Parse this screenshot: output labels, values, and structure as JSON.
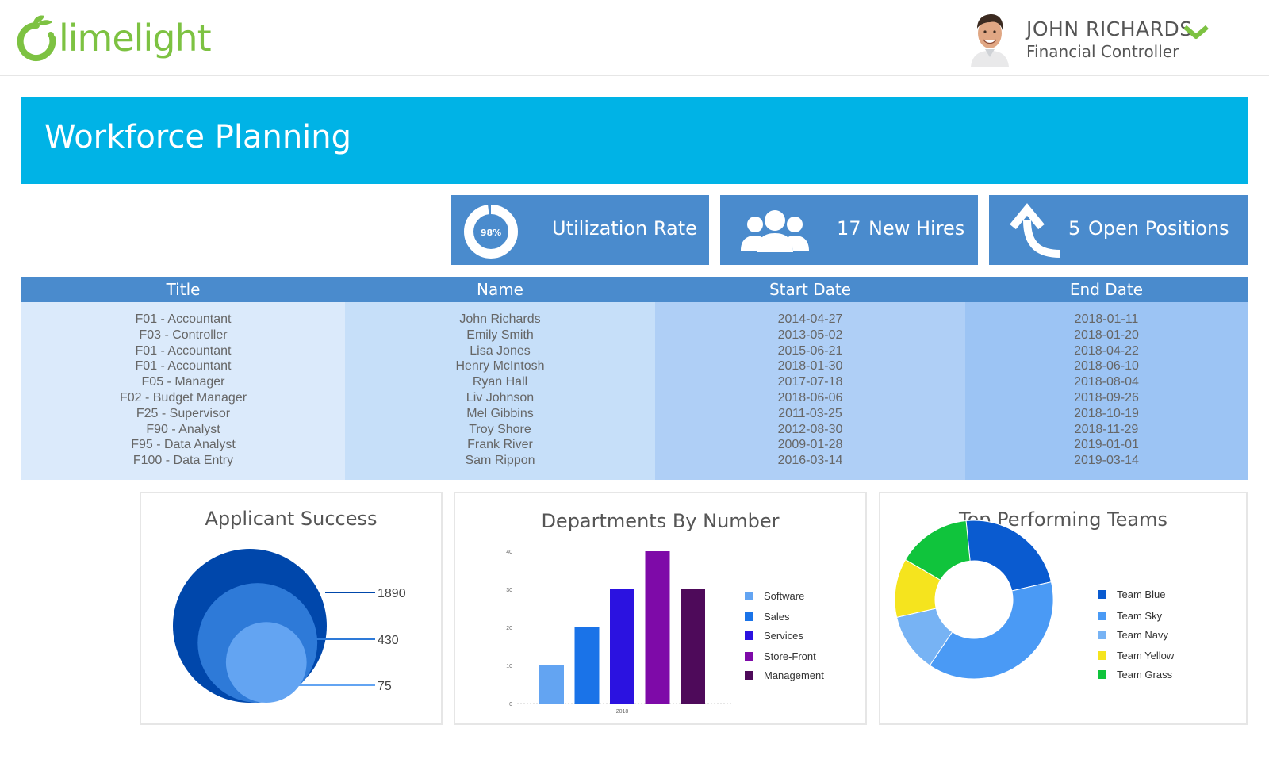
{
  "brand": {
    "name": "limelight",
    "color": "#7dc242"
  },
  "user": {
    "name": "JOHN RICHARDS",
    "role": "Financial Controller",
    "chevron_icon": "chevron-down-icon"
  },
  "page": {
    "title": "Workforce Planning",
    "banner_color": "#00b3e6"
  },
  "kpis": {
    "utilization": {
      "gauge_text": "98%",
      "gauge_value": 0.98,
      "label": "Utilization Rate",
      "icon": "gauge-icon"
    },
    "new_hires": {
      "value": "17",
      "label": "New Hires",
      "icon": "people-icon"
    },
    "open_positions": {
      "value": "5",
      "label": "Open Positions",
      "icon": "arrow-up-icon"
    }
  },
  "table": {
    "headers": [
      "Title",
      "Name",
      "Start Date",
      "End Date"
    ],
    "titles": [
      "F01 - Accountant",
      "F03 - Controller",
      "F01 - Accountant",
      "F01 - Accountant",
      "F05 - Manager",
      "F02 - Budget Manager",
      "F25 - Supervisor",
      "F90 - Analyst",
      "F95 - Data Analyst",
      "F100 - Data Entry"
    ],
    "names": [
      "John Richards",
      "Emily Smith",
      "Lisa Jones",
      "Henry McIntosh",
      "Ryan Hall",
      "Liv Johnson",
      "Mel Gibbins",
      "Troy Shore",
      "Frank River",
      "Sam Rippon"
    ],
    "start_dates": [
      "2014-04-27",
      "2013-05-02",
      "2015-06-21",
      "2018-01-30",
      "2017-07-18",
      "2018-06-06",
      "2011-03-25",
      "2012-08-30",
      "2009-01-28",
      "2016-03-14"
    ],
    "end_dates": [
      "2018-01-11",
      "2018-01-20",
      "2018-04-22",
      "2018-06-10",
      "2018-08-04",
      "2018-09-26",
      "2018-10-19",
      "2018-11-29",
      "2019-01-01",
      "2019-03-14"
    ]
  },
  "panels": {
    "applicant": {
      "title": "Applicant Success"
    },
    "departments": {
      "title": "Departments By Number"
    },
    "teams": {
      "title": "Top Performing Teams"
    }
  },
  "chart_data": [
    {
      "type": "area",
      "subtype": "nested-circles",
      "title": "Applicant Success",
      "values": [
        1890,
        430,
        75
      ],
      "labels": [
        "1890",
        "430",
        "75"
      ],
      "colors": [
        "#0047ab",
        "#2e7ad8",
        "#63a4f2"
      ]
    },
    {
      "type": "bar",
      "title": "Departments By Number",
      "categories": [
        "2018"
      ],
      "series": [
        {
          "name": "Software",
          "values": [
            10
          ],
          "color": "#63a4f2"
        },
        {
          "name": "Sales",
          "values": [
            20
          ],
          "color": "#1a73e8"
        },
        {
          "name": "Services",
          "values": [
            30
          ],
          "color": "#2b12e0"
        },
        {
          "name": "Store-Front",
          "values": [
            40
          ],
          "color": "#7e0aa8"
        },
        {
          "name": "Management",
          "values": [
            30
          ],
          "color": "#4e0a5a"
        }
      ],
      "ylim": [
        0,
        40
      ],
      "yticks": [
        "0",
        "10",
        "20",
        "30",
        "40"
      ],
      "legend": "right"
    },
    {
      "type": "pie",
      "subtype": "donut",
      "title": "Top Performing Teams",
      "categories": [
        "Team Blue",
        "Team Sky",
        "Team Navy",
        "Team Yellow",
        "Team Grass"
      ],
      "values": [
        23,
        38,
        12,
        12,
        15
      ],
      "colors": [
        "#0a5bd0",
        "#4a9af5",
        "#77b3f4",
        "#f5e41e",
        "#10c43c"
      ],
      "legend": "right"
    }
  ]
}
